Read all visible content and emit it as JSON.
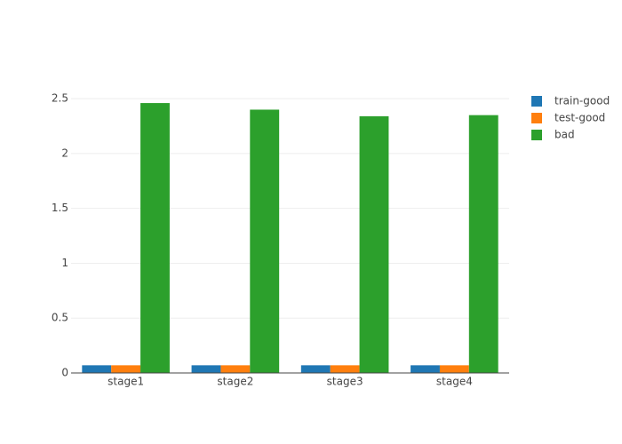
{
  "chart_data": {
    "type": "bar",
    "categories": [
      "stage1",
      "stage2",
      "stage3",
      "stage4"
    ],
    "series": [
      {
        "name": "train-good",
        "color": "#1f77b4",
        "values": [
          0.07,
          0.07,
          0.07,
          0.07
        ]
      },
      {
        "name": "test-good",
        "color": "#ff7f0e",
        "values": [
          0.07,
          0.07,
          0.07,
          0.07
        ]
      },
      {
        "name": "bad",
        "color": "#2ca02c",
        "values": [
          2.46,
          2.4,
          2.34,
          2.35
        ]
      }
    ],
    "ylim": [
      0,
      2.59
    ],
    "yticks": [
      0,
      0.5,
      1,
      1.5,
      2,
      2.5
    ],
    "grid": true,
    "legend": "right"
  }
}
